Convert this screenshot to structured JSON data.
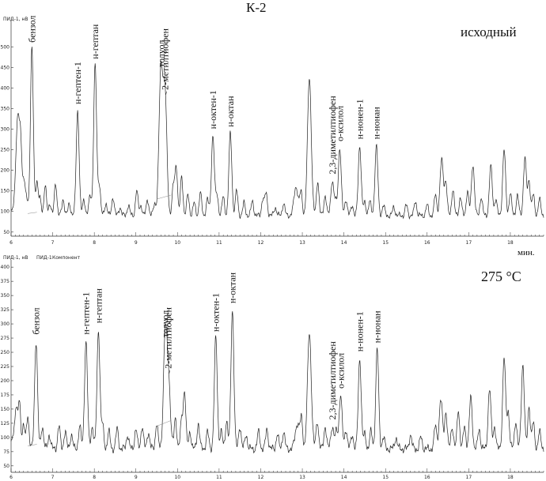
{
  "page": {
    "title": "К-2"
  },
  "chart_data": [
    {
      "type": "line",
      "ylabel": "ПИД-1, нВ",
      "panel_note": "исходный",
      "xlabel": "мин.",
      "xlim": [
        6,
        18.8
      ],
      "ylim": [
        40,
        560
      ],
      "x_ticks": [
        6,
        7,
        8,
        9,
        10,
        11,
        12,
        13,
        14,
        15,
        16,
        17,
        18
      ],
      "y_ticks": [
        50,
        100,
        150,
        200,
        250,
        300,
        350,
        400,
        450,
        500
      ],
      "baseline": 90,
      "peaks": [
        {
          "x": 6.05,
          "y": 110,
          "w": 0.03
        },
        {
          "x": 6.12,
          "y": 200,
          "w": 0.03
        },
        {
          "x": 6.17,
          "y": 285,
          "w": 0.03
        },
        {
          "x": 6.23,
          "y": 275,
          "w": 0.03
        },
        {
          "x": 6.31,
          "y": 170,
          "w": 0.03
        },
        {
          "x": 6.38,
          "y": 130,
          "w": 0.03
        },
        {
          "x": 6.5,
          "y": 495,
          "w": 0.035,
          "label": "бензол"
        },
        {
          "x": 6.62,
          "y": 170,
          "w": 0.03
        },
        {
          "x": 6.7,
          "y": 130,
          "w": 0.03
        },
        {
          "x": 6.82,
          "y": 160,
          "w": 0.03
        },
        {
          "x": 6.93,
          "y": 120,
          "w": 0.03
        },
        {
          "x": 7.07,
          "y": 170,
          "w": 0.03
        },
        {
          "x": 7.25,
          "y": 130,
          "w": 0.03
        },
        {
          "x": 7.4,
          "y": 120,
          "w": 0.03
        },
        {
          "x": 7.6,
          "y": 345,
          "w": 0.035,
          "label": "н-гептен-1"
        },
        {
          "x": 7.75,
          "y": 130,
          "w": 0.03
        },
        {
          "x": 7.9,
          "y": 140,
          "w": 0.03
        },
        {
          "x": 8.02,
          "y": 455,
          "w": 0.035,
          "label": "н-гептан"
        },
        {
          "x": 8.12,
          "y": 165,
          "w": 0.03
        },
        {
          "x": 8.28,
          "y": 120,
          "w": 0.03
        },
        {
          "x": 8.45,
          "y": 135,
          "w": 0.03
        },
        {
          "x": 8.62,
          "y": 110,
          "w": 0.03
        },
        {
          "x": 8.82,
          "y": 115,
          "w": 0.03
        },
        {
          "x": 9.02,
          "y": 150,
          "w": 0.03
        },
        {
          "x": 9.12,
          "y": 115,
          "w": 0.03
        },
        {
          "x": 9.28,
          "y": 130,
          "w": 0.03
        },
        {
          "x": 9.45,
          "y": 120,
          "w": 0.03
        },
        {
          "x": 9.6,
          "y": 435,
          "w": 0.045,
          "label": "толуол"
        },
        {
          "x": 9.7,
          "y": 380,
          "w": 0.045,
          "label": "2-метилтиофен"
        },
        {
          "x": 9.9,
          "y": 160,
          "w": 0.03
        },
        {
          "x": 9.97,
          "y": 210,
          "w": 0.03
        },
        {
          "x": 10.1,
          "y": 185,
          "w": 0.03
        },
        {
          "x": 10.25,
          "y": 140,
          "w": 0.03
        },
        {
          "x": 10.4,
          "y": 120,
          "w": 0.03
        },
        {
          "x": 10.55,
          "y": 145,
          "w": 0.03
        },
        {
          "x": 10.72,
          "y": 130,
          "w": 0.03
        },
        {
          "x": 10.85,
          "y": 285,
          "w": 0.035,
          "label": "н-октен-1"
        },
        {
          "x": 10.95,
          "y": 140,
          "w": 0.03
        },
        {
          "x": 11.1,
          "y": 135,
          "w": 0.03
        },
        {
          "x": 11.27,
          "y": 290,
          "w": 0.035,
          "label": "н-октан"
        },
        {
          "x": 11.42,
          "y": 150,
          "w": 0.03
        },
        {
          "x": 11.6,
          "y": 120,
          "w": 0.03
        },
        {
          "x": 11.8,
          "y": 125,
          "w": 0.03
        },
        {
          "x": 12.05,
          "y": 130,
          "w": 0.03
        },
        {
          "x": 12.13,
          "y": 145,
          "w": 0.03
        },
        {
          "x": 12.35,
          "y": 110,
          "w": 0.03
        },
        {
          "x": 12.55,
          "y": 120,
          "w": 0.03
        },
        {
          "x": 12.85,
          "y": 160,
          "w": 0.05
        },
        {
          "x": 12.97,
          "y": 145,
          "w": 0.03
        },
        {
          "x": 13.17,
          "y": 425,
          "w": 0.045
        },
        {
          "x": 13.37,
          "y": 175,
          "w": 0.03
        },
        {
          "x": 13.55,
          "y": 140,
          "w": 0.03
        },
        {
          "x": 13.72,
          "y": 175,
          "w": 0.035,
          "label": "2,3-диметилтиофен"
        },
        {
          "x": 13.8,
          "y": 120,
          "w": 0.03
        },
        {
          "x": 13.9,
          "y": 255,
          "w": 0.035,
          "label": "о-ксилол"
        },
        {
          "x": 14.05,
          "y": 130,
          "w": 0.03
        },
        {
          "x": 14.2,
          "y": 115,
          "w": 0.03
        },
        {
          "x": 14.38,
          "y": 260,
          "w": 0.035,
          "label": "н-нонен-1"
        },
        {
          "x": 14.5,
          "y": 120,
          "w": 0.03
        },
        {
          "x": 14.62,
          "y": 125,
          "w": 0.03
        },
        {
          "x": 14.78,
          "y": 260,
          "w": 0.035,
          "label": "н-нонан"
        },
        {
          "x": 14.95,
          "y": 115,
          "w": 0.03
        },
        {
          "x": 15.2,
          "y": 110,
          "w": 0.03
        },
        {
          "x": 15.5,
          "y": 115,
          "w": 0.03
        },
        {
          "x": 15.72,
          "y": 125,
          "w": 0.03
        },
        {
          "x": 16.0,
          "y": 115,
          "w": 0.03
        },
        {
          "x": 16.2,
          "y": 140,
          "w": 0.03
        },
        {
          "x": 16.35,
          "y": 225,
          "w": 0.04
        },
        {
          "x": 16.45,
          "y": 170,
          "w": 0.03
        },
        {
          "x": 16.62,
          "y": 155,
          "w": 0.03
        },
        {
          "x": 16.8,
          "y": 135,
          "w": 0.03
        },
        {
          "x": 16.97,
          "y": 150,
          "w": 0.03
        },
        {
          "x": 17.1,
          "y": 215,
          "w": 0.035
        },
        {
          "x": 17.3,
          "y": 135,
          "w": 0.03
        },
        {
          "x": 17.53,
          "y": 210,
          "w": 0.035
        },
        {
          "x": 17.65,
          "y": 130,
          "w": 0.03
        },
        {
          "x": 17.85,
          "y": 250,
          "w": 0.035
        },
        {
          "x": 18.0,
          "y": 145,
          "w": 0.03
        },
        {
          "x": 18.17,
          "y": 140,
          "w": 0.03
        },
        {
          "x": 18.35,
          "y": 230,
          "w": 0.035
        },
        {
          "x": 18.45,
          "y": 175,
          "w": 0.03
        },
        {
          "x": 18.55,
          "y": 140,
          "w": 0.03
        },
        {
          "x": 18.7,
          "y": 130,
          "w": 0.03
        }
      ]
    },
    {
      "type": "line",
      "ylabel": "ПИД-1, нВ",
      "header_extra": [
        "ПИД-1",
        "Компонент"
      ],
      "panel_note": "275 °С",
      "xlim": [
        6,
        18.8
      ],
      "ylim": [
        40,
        410
      ],
      "x_ticks": [
        6,
        7,
        8,
        9,
        10,
        11,
        12,
        13,
        14,
        15,
        16,
        17,
        18
      ],
      "y_ticks": [
        50,
        75,
        100,
        125,
        150,
        175,
        200,
        225,
        250,
        275,
        300,
        325,
        350,
        375,
        400
      ],
      "baseline": 80,
      "peaks": [
        {
          "x": 6.05,
          "y": 105,
          "w": 0.03
        },
        {
          "x": 6.12,
          "y": 150,
          "w": 0.03
        },
        {
          "x": 6.2,
          "y": 165,
          "w": 0.03
        },
        {
          "x": 6.3,
          "y": 120,
          "w": 0.03
        },
        {
          "x": 6.4,
          "y": 140,
          "w": 0.03
        },
        {
          "x": 6.6,
          "y": 270,
          "w": 0.035,
          "label": "бензол"
        },
        {
          "x": 6.75,
          "y": 120,
          "w": 0.03
        },
        {
          "x": 6.92,
          "y": 105,
          "w": 0.03
        },
        {
          "x": 7.15,
          "y": 120,
          "w": 0.03
        },
        {
          "x": 7.3,
          "y": 110,
          "w": 0.03
        },
        {
          "x": 7.45,
          "y": 105,
          "w": 0.03
        },
        {
          "x": 7.65,
          "y": 120,
          "w": 0.03
        },
        {
          "x": 7.8,
          "y": 270,
          "w": 0.035,
          "label": "н-гептен-1"
        },
        {
          "x": 7.95,
          "y": 120,
          "w": 0.03
        },
        {
          "x": 8.1,
          "y": 290,
          "w": 0.035,
          "label": "н-гептан"
        },
        {
          "x": 8.2,
          "y": 120,
          "w": 0.03
        },
        {
          "x": 8.35,
          "y": 110,
          "w": 0.03
        },
        {
          "x": 8.55,
          "y": 115,
          "w": 0.03
        },
        {
          "x": 8.8,
          "y": 105,
          "w": 0.03
        },
        {
          "x": 9.0,
          "y": 115,
          "w": 0.03
        },
        {
          "x": 9.15,
          "y": 120,
          "w": 0.03
        },
        {
          "x": 9.3,
          "y": 110,
          "w": 0.03
        },
        {
          "x": 9.5,
          "y": 125,
          "w": 0.03
        },
        {
          "x": 9.7,
          "y": 265,
          "w": 0.04,
          "label": "толуол"
        },
        {
          "x": 9.78,
          "y": 210,
          "w": 0.045,
          "label": "2-метилтиофен"
        },
        {
          "x": 9.95,
          "y": 135,
          "w": 0.03
        },
        {
          "x": 10.1,
          "y": 130,
          "w": 0.03
        },
        {
          "x": 10.17,
          "y": 180,
          "w": 0.03
        },
        {
          "x": 10.3,
          "y": 110,
          "w": 0.03
        },
        {
          "x": 10.5,
          "y": 125,
          "w": 0.03
        },
        {
          "x": 10.72,
          "y": 110,
          "w": 0.03
        },
        {
          "x": 10.92,
          "y": 275,
          "w": 0.035,
          "label": "н-октен-1"
        },
        {
          "x": 11.05,
          "y": 110,
          "w": 0.03
        },
        {
          "x": 11.18,
          "y": 130,
          "w": 0.03
        },
        {
          "x": 11.32,
          "y": 325,
          "w": 0.035,
          "label": "н-октан"
        },
        {
          "x": 11.5,
          "y": 120,
          "w": 0.03
        },
        {
          "x": 11.65,
          "y": 105,
          "w": 0.03
        },
        {
          "x": 11.95,
          "y": 110,
          "w": 0.03
        },
        {
          "x": 12.15,
          "y": 115,
          "w": 0.03
        },
        {
          "x": 12.4,
          "y": 105,
          "w": 0.03
        },
        {
          "x": 12.55,
          "y": 110,
          "w": 0.03
        },
        {
          "x": 12.88,
          "y": 125,
          "w": 0.05
        },
        {
          "x": 12.98,
          "y": 130,
          "w": 0.03
        },
        {
          "x": 13.17,
          "y": 285,
          "w": 0.045
        },
        {
          "x": 13.36,
          "y": 130,
          "w": 0.03
        },
        {
          "x": 13.55,
          "y": 120,
          "w": 0.03
        },
        {
          "x": 13.72,
          "y": 120,
          "w": 0.035,
          "label": "2,3-диметилтиофен"
        },
        {
          "x": 13.82,
          "y": 110,
          "w": 0.03
        },
        {
          "x": 13.92,
          "y": 175,
          "w": 0.035,
          "label": "о-ксилол"
        },
        {
          "x": 14.05,
          "y": 115,
          "w": 0.03
        },
        {
          "x": 14.2,
          "y": 105,
          "w": 0.03
        },
        {
          "x": 14.38,
          "y": 240,
          "w": 0.035,
          "label": "н-нонен-1"
        },
        {
          "x": 14.5,
          "y": 105,
          "w": 0.03
        },
        {
          "x": 14.65,
          "y": 110,
          "w": 0.03
        },
        {
          "x": 14.8,
          "y": 255,
          "w": 0.035,
          "label": "н-нонан"
        },
        {
          "x": 14.95,
          "y": 100,
          "w": 0.03
        },
        {
          "x": 15.25,
          "y": 100,
          "w": 0.03
        },
        {
          "x": 15.6,
          "y": 105,
          "w": 0.03
        },
        {
          "x": 15.85,
          "y": 100,
          "w": 0.03
        },
        {
          "x": 16.2,
          "y": 120,
          "w": 0.03
        },
        {
          "x": 16.33,
          "y": 165,
          "w": 0.04
        },
        {
          "x": 16.45,
          "y": 145,
          "w": 0.03
        },
        {
          "x": 16.6,
          "y": 120,
          "w": 0.03
        },
        {
          "x": 16.75,
          "y": 150,
          "w": 0.03
        },
        {
          "x": 16.9,
          "y": 120,
          "w": 0.03
        },
        {
          "x": 17.05,
          "y": 170,
          "w": 0.035
        },
        {
          "x": 17.25,
          "y": 115,
          "w": 0.03
        },
        {
          "x": 17.5,
          "y": 185,
          "w": 0.035
        },
        {
          "x": 17.62,
          "y": 120,
          "w": 0.03
        },
        {
          "x": 17.85,
          "y": 240,
          "w": 0.035
        },
        {
          "x": 17.95,
          "y": 145,
          "w": 0.03
        },
        {
          "x": 18.13,
          "y": 130,
          "w": 0.03
        },
        {
          "x": 18.3,
          "y": 230,
          "w": 0.035
        },
        {
          "x": 18.45,
          "y": 155,
          "w": 0.03
        },
        {
          "x": 18.55,
          "y": 125,
          "w": 0.03
        },
        {
          "x": 18.7,
          "y": 110,
          "w": 0.03
        }
      ]
    }
  ]
}
